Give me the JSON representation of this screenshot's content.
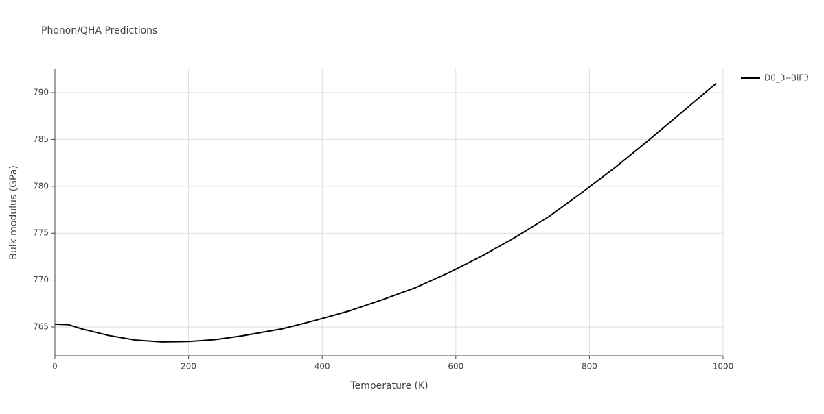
{
  "chart_data": {
    "type": "line",
    "title": "Phonon/QHA Predictions",
    "x_label": "Temperature (K)",
    "y_label": "Bulk modulus (GPa)",
    "x": [
      0,
      20,
      40,
      80,
      120,
      160,
      200,
      240,
      280,
      340,
      390,
      440,
      490,
      540,
      590,
      640,
      690,
      740,
      790,
      840,
      890,
      940,
      990
    ],
    "series": [
      {
        "name": "D0_3--BiF3",
        "color": "#000000",
        "values": [
          765.3,
          765.25,
          764.8,
          764.1,
          763.6,
          763.4,
          763.45,
          763.65,
          764.05,
          764.8,
          765.7,
          766.7,
          767.9,
          769.2,
          770.8,
          772.6,
          774.6,
          776.8,
          779.4,
          782.1,
          785.0,
          788.0,
          791.0
        ]
      }
    ],
    "xlim": [
      0,
      1000
    ],
    "xticks": [
      0,
      200,
      400,
      600,
      800,
      1000
    ],
    "ylim": [
      761.93,
      792.56
    ],
    "yticks": [
      765,
      770,
      775,
      780,
      785,
      790
    ],
    "grid": true,
    "legend": "right"
  }
}
